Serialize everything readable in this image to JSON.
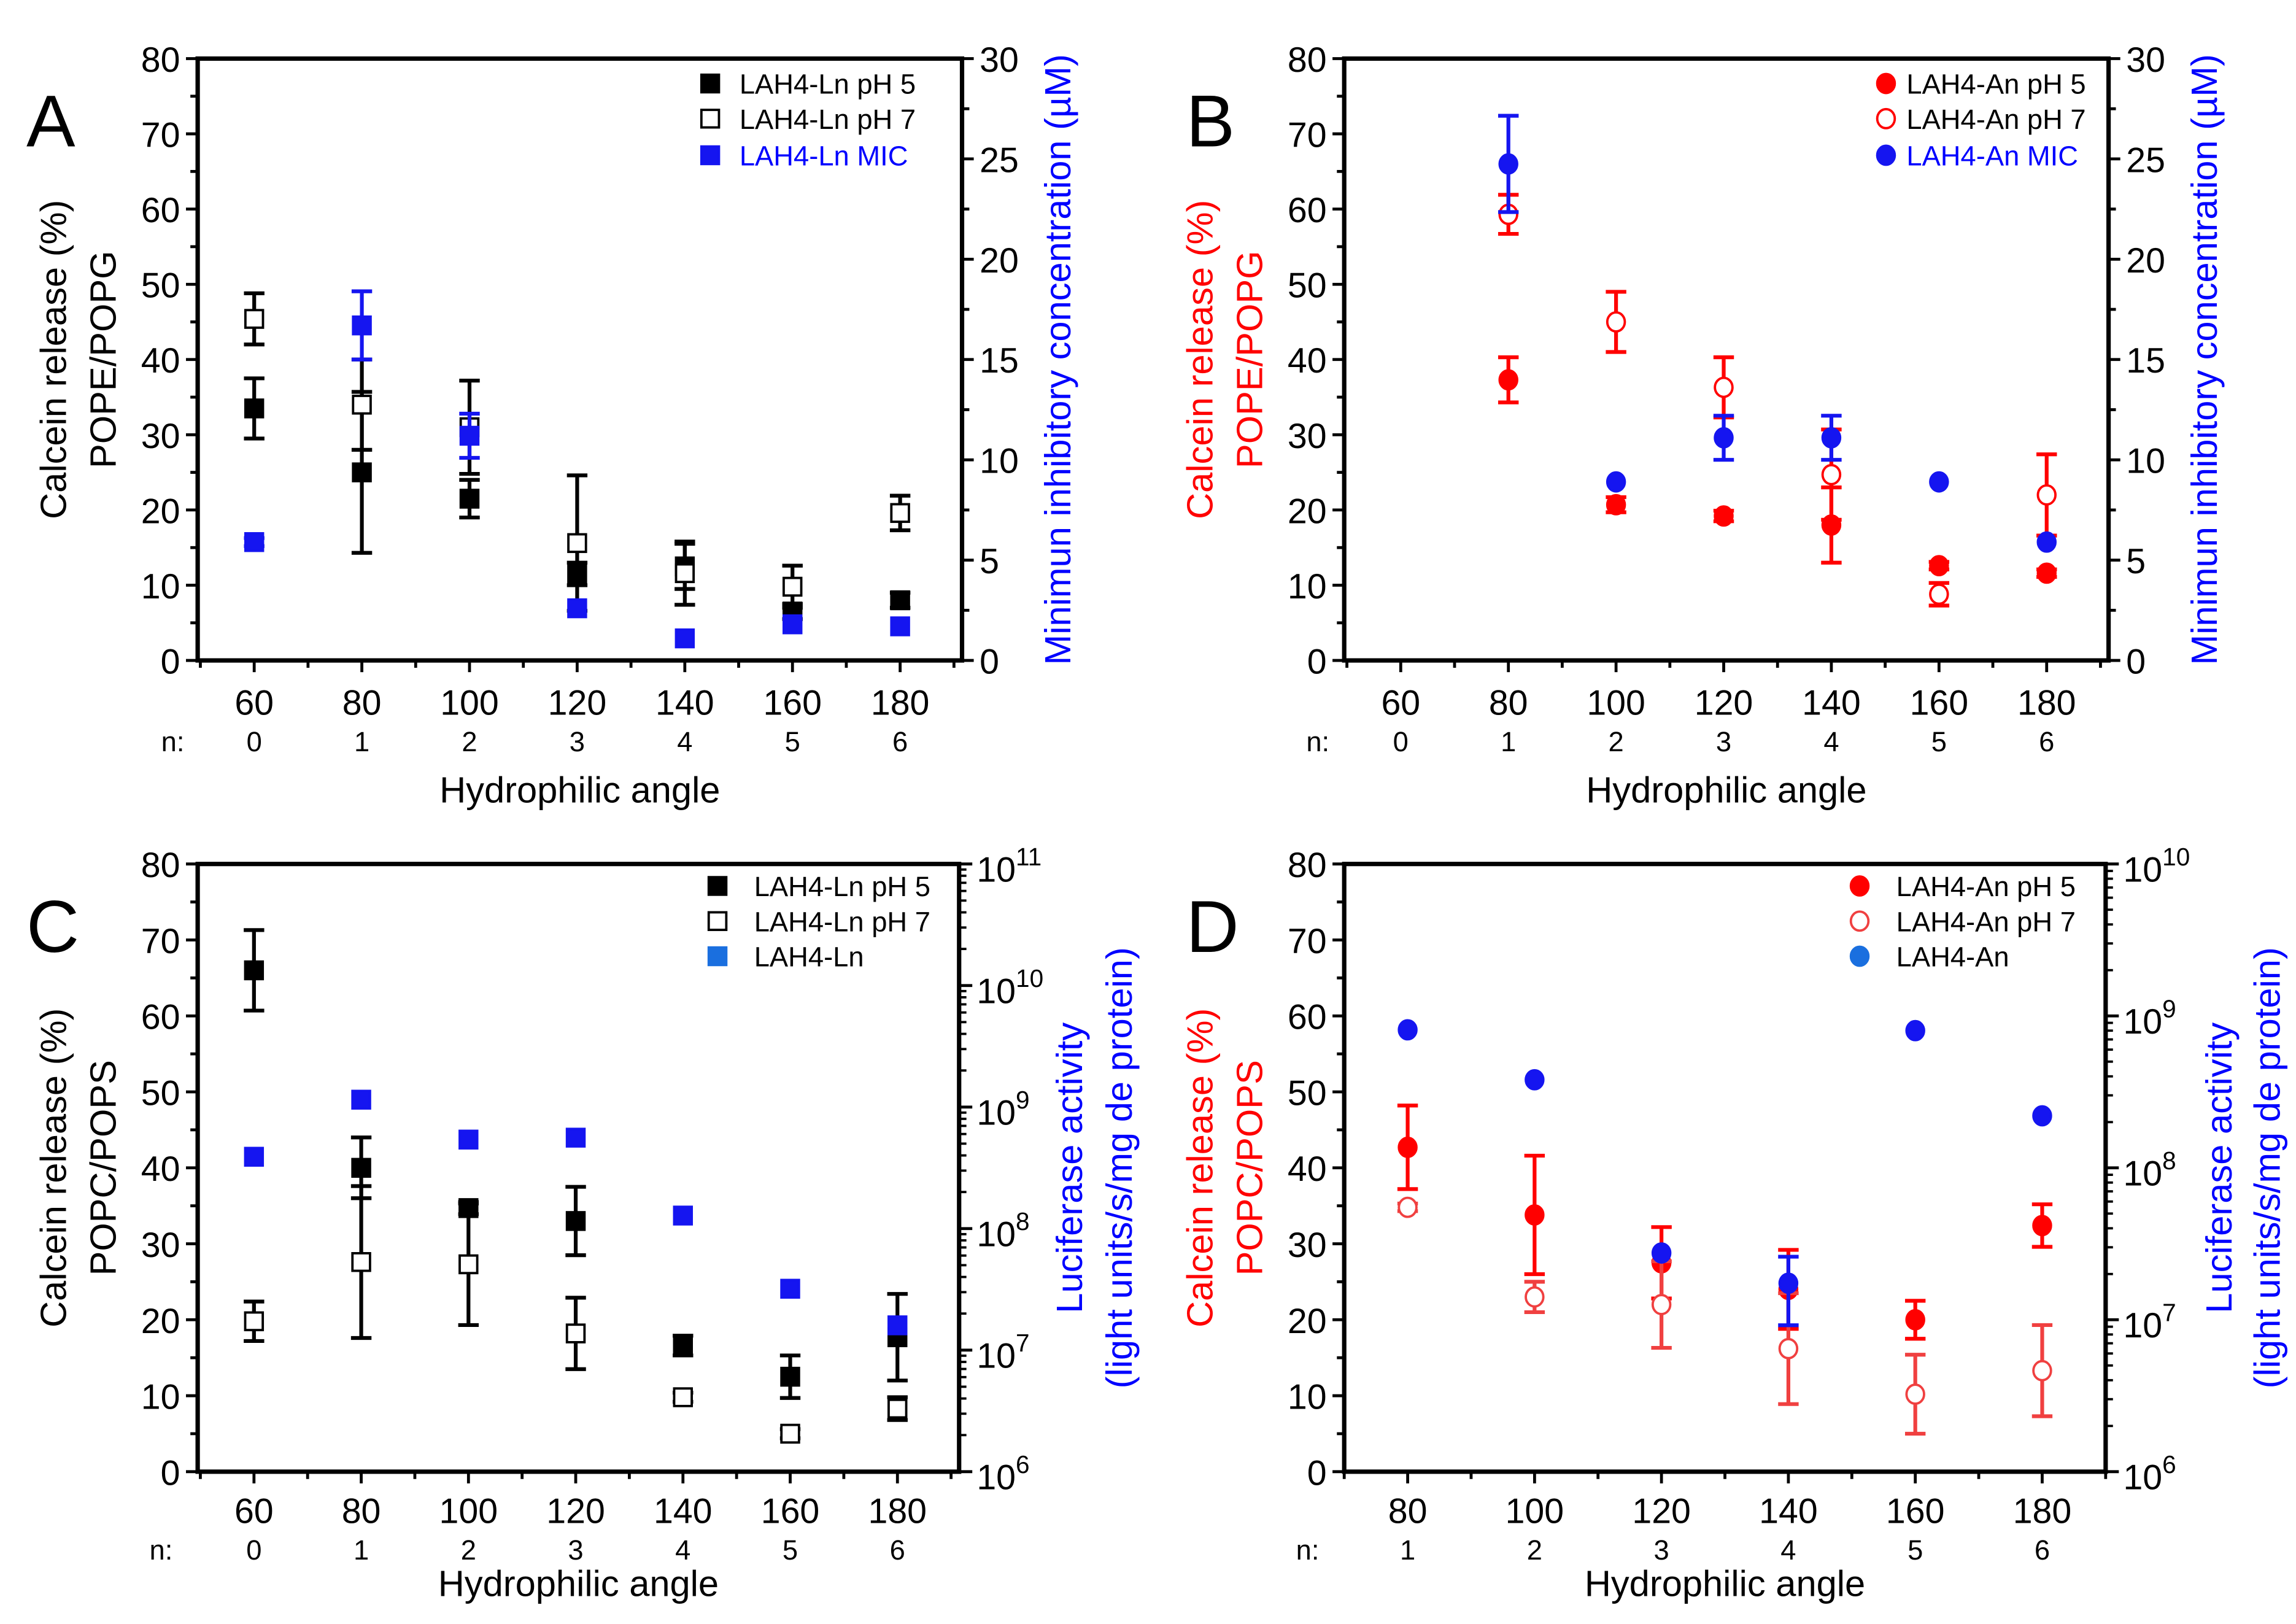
{
  "chart_data": [
    {
      "panel": "A",
      "type": "scatter",
      "x": [
        60,
        80,
        100,
        120,
        140,
        160,
        180
      ],
      "n": [
        0,
        1,
        2,
        3,
        4,
        5,
        6
      ],
      "xlabel": "Hydrophilic angle",
      "n_label": "n:",
      "xlim": [
        49.5,
        191.5
      ],
      "ylabel": [
        "Calcein release (%)",
        "POPE/POPG"
      ],
      "ylabel_color": "#000000",
      "ylim": [
        0,
        80
      ],
      "y2label": [
        "Minimun inhibitory concentration (µM)"
      ],
      "y2_color": "#0000ff",
      "y2_scale": "linear",
      "y2lim": [
        0,
        30
      ],
      "series": [
        {
          "name": "LAH4-Ln pH 5",
          "marker": "square",
          "filled": true,
          "color": "#000000",
          "legend_text_color": "#000000",
          "axis": "left",
          "y": [
            33.5,
            25,
            21.5,
            11.5,
            12.5,
            6.5,
            8
          ],
          "err": [
            4,
            10.7,
            2.5,
            1.5,
            3,
            1,
            1
          ]
        },
        {
          "name": "LAH4-Ln pH 7",
          "marker": "square",
          "filled": false,
          "color": "#000000",
          "legend_text_color": "#000000",
          "axis": "left",
          "y": [
            45.4,
            34,
            31,
            15.6,
            11.6,
            9.8,
            19.6
          ],
          "err": [
            3.4,
            6,
            6.2,
            9,
            4.2,
            2.8,
            2.3
          ]
        },
        {
          "name": "LAH4-Ln MIC",
          "marker": "square",
          "filled": true,
          "color": "#1515f0",
          "legend_text_color": "#0000ff",
          "axis": "right",
          "y": [
            5.9,
            16.7,
            11.2,
            2.6,
            1.1,
            1.8,
            1.7
          ],
          "err": [
            0.2,
            1.7,
            1.1,
            0,
            0,
            0,
            0
          ]
        }
      ]
    },
    {
      "panel": "B",
      "type": "scatter",
      "x": [
        80,
        100,
        120,
        140,
        160,
        180
      ],
      "n": [
        0,
        1,
        2,
        3,
        4,
        5,
        6
      ],
      "xticks": [
        60,
        80,
        100,
        120,
        140,
        160,
        180
      ],
      "xlabel": "Hydrophilic angle",
      "n_label": "n:",
      "xlim": [
        49.5,
        191.5
      ],
      "ylabel": [
        "Calcein release (%)",
        "POPE/POPG"
      ],
      "ylabel_color": "#ff0000",
      "ylim": [
        0,
        80
      ],
      "y2label": [
        "Minimun inhibitory concentration (µM)"
      ],
      "y2_color": "#0000ff",
      "y2_scale": "linear",
      "y2lim": [
        0,
        30
      ],
      "series": [
        {
          "name": "LAH4-An pH 5",
          "marker": "circle",
          "filled": true,
          "color": "#ff0000",
          "legend_text_color": "#000000",
          "axis": "left",
          "y": [
            37.3,
            20.7,
            19.2,
            18,
            12.6,
            11.6
          ],
          "err": [
            3,
            1,
            0.7,
            5,
            0.5,
            0.5
          ]
        },
        {
          "name": "LAH4-An pH 7",
          "marker": "circle",
          "filled": false,
          "color": "#ff0000",
          "legend_text_color": "#000000",
          "axis": "left",
          "y": [
            59.3,
            45,
            36.3,
            24.7,
            8.8,
            22
          ],
          "err": [
            2.6,
            4,
            4,
            6,
            1.5,
            5.4
          ]
        },
        {
          "name": "LAH4-An MIC",
          "marker": "circle",
          "filled": true,
          "color": "#1515f0",
          "legend_text_color": "#0000ff",
          "axis": "right",
          "y": [
            24.75,
            8.9,
            11.1,
            11.1,
            8.9,
            5.9
          ],
          "err": [
            2.4,
            0,
            1.1,
            1.1,
            0,
            0
          ]
        }
      ]
    },
    {
      "panel": "C",
      "type": "scatter",
      "x": [
        60,
        80,
        100,
        120,
        140,
        160,
        180
      ],
      "n": [
        0,
        1,
        2,
        3,
        4,
        5,
        6
      ],
      "xlabel": "Hydrophilic angle",
      "n_label": "n:",
      "xlim": [
        49.5,
        191.5
      ],
      "ylabel": [
        "Calcein release (%)",
        "POPC/POPS"
      ],
      "ylabel_color": "#000000",
      "ylim": [
        0,
        80
      ],
      "y2label": [
        "Luciferase activity",
        "(light units/s/mg de protein)"
      ],
      "y2_color": "#0000ff",
      "y2_scale": "log",
      "y2lim": [
        1000000.0,
        100000000000.0
      ],
      "series": [
        {
          "name": "LAH4-Ln pH 5",
          "marker": "square",
          "filled": true,
          "color": "#000000",
          "legend_text_color": "#000000",
          "axis": "left",
          "y": [
            66,
            40,
            34.7,
            33,
            16.6,
            12.5,
            17.7
          ],
          "err": [
            5.3,
            4,
            0.8,
            4.5,
            1.3,
            2.8,
            5.7
          ]
        },
        {
          "name": "LAH4-Ln pH 7",
          "marker": "square",
          "filled": false,
          "color": "#000000",
          "legend_text_color": "#000000",
          "axis": "left",
          "y": [
            19.8,
            27.6,
            27.3,
            18.2,
            9.8,
            5,
            8.3
          ],
          "err": [
            2.6,
            10,
            8,
            4.7,
            0.6,
            0.6,
            1.5
          ]
        },
        {
          "name": "LAH4-Ln",
          "marker": "square",
          "filled": true,
          "color": "#1515f0",
          "legend_marker_color": "#1a6fdf",
          "legend_text_color": "#000000",
          "axis": "right",
          "y": [
            390000000.0,
            1150000000.0,
            540000000.0,
            560000000.0,
            128000000.0,
            32000000.0,
            16000000.0
          ]
        }
      ]
    },
    {
      "panel": "D",
      "type": "scatter",
      "x": [
        80,
        100,
        120,
        140,
        160,
        180
      ],
      "n": [
        1,
        2,
        3,
        4,
        5,
        6
      ],
      "xlabel": "Hydrophilic angle",
      "n_label": "n:",
      "xlim": [
        70,
        190
      ],
      "ylabel": [
        "Calcein release (%)",
        "POPC/POPS"
      ],
      "ylabel_color": "#ff0000",
      "ylim": [
        0,
        80
      ],
      "y2label": [
        "Luciferase activity",
        "(light units/s/mg de protein)"
      ],
      "y2_color": "#0000ff",
      "y2_scale": "log",
      "y2lim": [
        1000000.0,
        10000000000.0
      ],
      "series": [
        {
          "name": "LAH4-An pH 5",
          "marker": "circle",
          "filled": true,
          "color": "#ff0000",
          "legend_text_color": "#000000",
          "axis": "left",
          "y": [
            42.7,
            33.8,
            27.5,
            24,
            20,
            32.4
          ],
          "err": [
            5.5,
            7.8,
            4.7,
            5.2,
            2.5,
            2.8
          ]
        },
        {
          "name": "LAH4-An pH 7",
          "marker": "circle",
          "filled": false,
          "color": "#f04040",
          "legend_text_color": "#000000",
          "axis": "left",
          "y": [
            34.8,
            23,
            22,
            16.2,
            10.2,
            13.3
          ],
          "err": [
            0.5,
            2,
            5.7,
            7.3,
            5.2,
            6
          ]
        },
        {
          "name": "LAH4-An",
          "marker": "circle",
          "filled": true,
          "color": "#1515f0",
          "legend_marker_color": "#1a6fdf",
          "legend_text_color": "#000000",
          "axis": "right",
          "y": [
            810000000.0,
            380000000.0,
            27500000.0,
            17400000.0,
            800000000.0,
            220000000.0
          ],
          "err_low": [
            null,
            null,
            null,
            9200000.0,
            null,
            null
          ],
          "err_high": [
            null,
            null,
            null,
            26000000.0,
            null,
            null
          ]
        }
      ]
    }
  ]
}
